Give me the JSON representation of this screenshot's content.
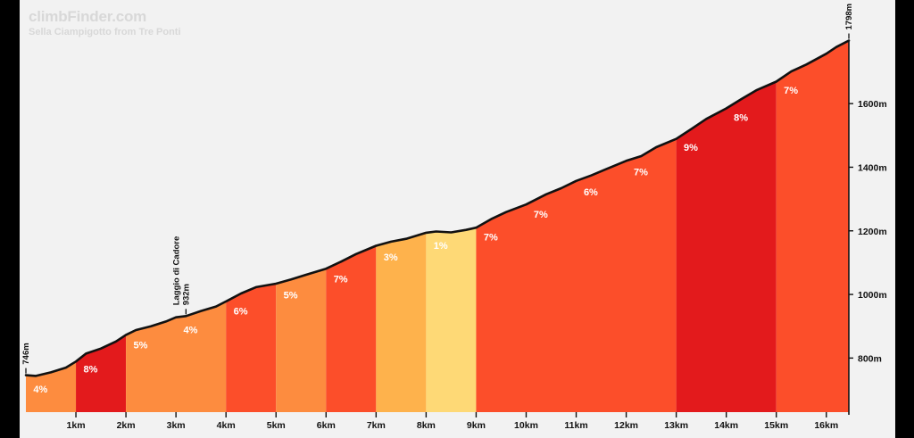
{
  "brand": "climbFinder.com",
  "subtitle": "Sella Ciampigotto from Tre Ponti",
  "chart_data": {
    "type": "area",
    "xlabel": "",
    "ylabel": "",
    "xlim": [
      0,
      16.45
    ],
    "ylim": [
      630,
      1850
    ],
    "x_ticks": [
      1,
      2,
      3,
      4,
      5,
      6,
      7,
      8,
      9,
      10,
      11,
      12,
      13,
      14,
      15,
      16
    ],
    "x_tick_labels": [
      "1km",
      "2km",
      "3km",
      "4km",
      "5km",
      "6km",
      "7km",
      "8km",
      "9km",
      "10km",
      "11km",
      "12km",
      "13km",
      "14km",
      "15km",
      "16km"
    ],
    "y_ticks": [
      800,
      1000,
      1200,
      1400,
      1600
    ],
    "y_tick_labels": [
      "800m",
      "1000m",
      "1200m",
      "1400m",
      "1600m"
    ],
    "profile": {
      "x": [
        0,
        0.2,
        0.5,
        0.8,
        1.0,
        1.2,
        1.5,
        1.8,
        2.0,
        2.2,
        2.5,
        2.8,
        3.0,
        3.2,
        3.5,
        3.8,
        4.0,
        4.3,
        4.6,
        5.0,
        5.3,
        5.6,
        6.0,
        6.3,
        6.6,
        7.0,
        7.3,
        7.6,
        8.0,
        8.2,
        8.5,
        8.8,
        9.0,
        9.3,
        9.6,
        10.0,
        10.4,
        10.7,
        11.0,
        11.3,
        11.6,
        12.0,
        12.3,
        12.6,
        13.0,
        13.3,
        13.6,
        14.0,
        14.3,
        14.6,
        15.0,
        15.3,
        15.6,
        16.0,
        16.2,
        16.45
      ],
      "elevation": [
        746,
        744,
        755,
        770,
        789,
        814,
        830,
        852,
        873,
        888,
        900,
        915,
        928,
        932,
        948,
        962,
        978,
        1003,
        1023,
        1034,
        1047,
        1062,
        1081,
        1103,
        1127,
        1153,
        1166,
        1175,
        1194,
        1198,
        1195,
        1203,
        1210,
        1237,
        1259,
        1283,
        1315,
        1334,
        1357,
        1374,
        1394,
        1420,
        1435,
        1463,
        1489,
        1520,
        1552,
        1585,
        1614,
        1642,
        1669,
        1701,
        1723,
        1757,
        1778,
        1798
      ]
    },
    "segments": [
      {
        "from": 0,
        "to": 1,
        "gradient": "4%",
        "color": "#fd8c3f"
      },
      {
        "from": 1,
        "to": 2,
        "gradient": "8%",
        "color": "#e31a1c"
      },
      {
        "from": 2,
        "to": 4,
        "gradient": "5%",
        "color": "#fd8c3f"
      },
      {
        "from": 4,
        "to": 5,
        "gradient": "6%",
        "color": "#fc4e2a"
      },
      {
        "from": 5,
        "to": 6,
        "gradient": "5%",
        "color": "#fd8c3f"
      },
      {
        "from": 6,
        "to": 7,
        "gradient": "7%",
        "color": "#fc4e2a"
      },
      {
        "from": 7,
        "to": 8,
        "gradient": "3%",
        "color": "#feb24c"
      },
      {
        "from": 8,
        "to": 9,
        "gradient": "1%",
        "color": "#fed976"
      },
      {
        "from": 9,
        "to": 13,
        "gradient": "7%",
        "color": "#fc4e2a"
      },
      {
        "from": 13,
        "to": 15,
        "gradient": "9%",
        "color": "#e31a1c"
      },
      {
        "from": 15,
        "to": 16.45,
        "gradient": "7%",
        "color": "#fc4e2a"
      }
    ],
    "gradient_labels": [
      {
        "x": 0.15,
        "elevation": 746,
        "text": "4%"
      },
      {
        "x": 1.15,
        "elevation": 790,
        "text": "8%"
      },
      {
        "x": 2.15,
        "elevation": 875,
        "text": "5%"
      },
      {
        "x": 3.15,
        "elevation": 930,
        "text": "4%"
      },
      {
        "x": 4.15,
        "elevation": 980,
        "text": "6%"
      },
      {
        "x": 5.15,
        "elevation": 1036,
        "text": "5%"
      },
      {
        "x": 6.15,
        "elevation": 1085,
        "text": "7%"
      },
      {
        "x": 7.15,
        "elevation": 1155,
        "text": "3%"
      },
      {
        "x": 8.15,
        "elevation": 1196,
        "text": "1%"
      },
      {
        "x": 9.15,
        "elevation": 1212,
        "text": "7%"
      },
      {
        "x": 10.15,
        "elevation": 1290,
        "text": "7%"
      },
      {
        "x": 11.15,
        "elevation": 1360,
        "text": "6%"
      },
      {
        "x": 12.15,
        "elevation": 1422,
        "text": "7%"
      },
      {
        "x": 13.15,
        "elevation": 1490,
        "text": "9%"
      },
      {
        "x": 14.15,
        "elevation": 1590,
        "text": "8%"
      },
      {
        "x": 15.15,
        "elevation": 1672,
        "text": "7%"
      }
    ],
    "annotations": [
      {
        "x": 0,
        "elevation": 746,
        "lines": [
          "746m"
        ]
      },
      {
        "x": 3.2,
        "elevation": 932,
        "lines": [
          "Laggio di Cadore",
          "932m"
        ]
      },
      {
        "x": 16.45,
        "elevation": 1798,
        "lines": [
          "1798m"
        ]
      }
    ],
    "grid": false,
    "legend": "none",
    "line_color": "#111111",
    "background": "#f2f2f2"
  }
}
